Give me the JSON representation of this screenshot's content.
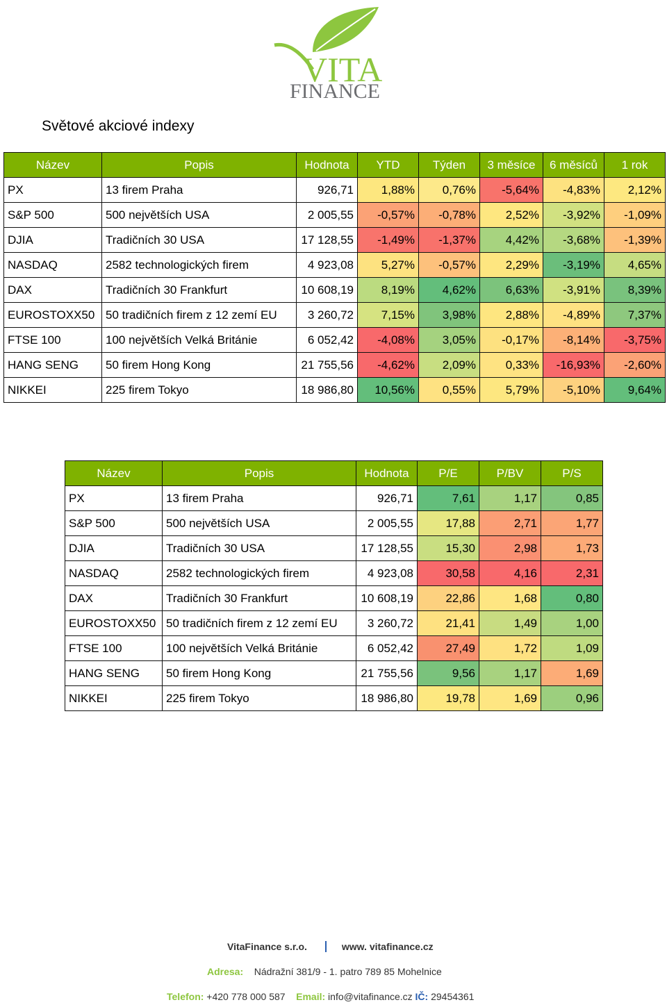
{
  "logo": {
    "line1": "VITA",
    "line2": "FINANCE",
    "colors": {
      "green": "#8dc63f",
      "grey": "#6d6e71"
    }
  },
  "title": "Světové akciové indexy",
  "table1": {
    "headers": [
      "Název",
      "Popis",
      "Hodnota",
      "YTD",
      "Týden",
      "3 měsíce",
      "6 měsíců",
      "1 rok"
    ],
    "rows": [
      {
        "name": "PX",
        "desc": "13 firem Praha",
        "value": "926,71",
        "cells": [
          {
            "v": "1,88%",
            "c": "#fde77f"
          },
          {
            "v": "0,76%",
            "c": "#fde98a"
          },
          {
            "v": "-5,64%",
            "c": "#f8736b"
          },
          {
            "v": "-4,83%",
            "c": "#fde280"
          },
          {
            "v": "2,12%",
            "c": "#fde880"
          }
        ]
      },
      {
        "name": "S&P 500",
        "desc": "500 největších USA",
        "value": "2 005,55",
        "cells": [
          {
            "v": "-0,57%",
            "c": "#fba276"
          },
          {
            "v": "-0,78%",
            "c": "#fcae77"
          },
          {
            "v": "2,52%",
            "c": "#fee780"
          },
          {
            "v": "-3,92%",
            "c": "#d1e181"
          },
          {
            "v": "-1,09%",
            "c": "#fecf7e"
          }
        ]
      },
      {
        "name": "DJIA",
        "desc": "Tradičních 30 USA",
        "value": "17 128,55",
        "cells": [
          {
            "v": "-1,49%",
            "c": "#f8746c"
          },
          {
            "v": "-1,37%",
            "c": "#f8726b"
          },
          {
            "v": "4,42%",
            "c": "#a7d37f"
          },
          {
            "v": "-3,68%",
            "c": "#b5d881"
          },
          {
            "v": "-1,39%",
            "c": "#fdc17c"
          }
        ]
      },
      {
        "name": "NASDAQ",
        "desc": "2582 technologických firem",
        "value": "4 923,08",
        "cells": [
          {
            "v": "5,27%",
            "c": "#fde280"
          },
          {
            "v": "-0,57%",
            "c": "#fdc17c"
          },
          {
            "v": "2,29%",
            "c": "#fee680"
          },
          {
            "v": "-3,19%",
            "c": "#6bbe7b"
          },
          {
            "v": "4,65%",
            "c": "#c6dd81"
          }
        ]
      },
      {
        "name": "DAX",
        "desc": "Tradičních 30 Frankfurt",
        "value": "10 608,19",
        "cells": [
          {
            "v": "8,19%",
            "c": "#bbdb80"
          },
          {
            "v": "4,62%",
            "c": "#63be7b"
          },
          {
            "v": "6,63%",
            "c": "#7cc37c"
          },
          {
            "v": "-3,91%",
            "c": "#d0e181"
          },
          {
            "v": "8,39%",
            "c": "#79c27d"
          }
        ]
      },
      {
        "name": "EUROSTOXX50",
        "desc": "50 tradičních firem z 12 zemí EU",
        "value": "3 260,72",
        "cells": [
          {
            "v": "7,15%",
            "c": "#d6e381"
          },
          {
            "v": "3,98%",
            "c": "#80c47c"
          },
          {
            "v": "2,88%",
            "c": "#fee680"
          },
          {
            "v": "-4,89%",
            "c": "#fee282"
          },
          {
            "v": "7,37%",
            "c": "#8ec87e"
          }
        ]
      },
      {
        "name": "FTSE 100",
        "desc": "100 největších Velká Británie",
        "value": "6 052,42",
        "cells": [
          {
            "v": "-4,08%",
            "c": "#f8696b"
          },
          {
            "v": "3,05%",
            "c": "#a5d27f"
          },
          {
            "v": "-0,17%",
            "c": "#fde180"
          },
          {
            "v": "-8,14%",
            "c": "#fcb077"
          },
          {
            "v": "-3,75%",
            "c": "#f8696b"
          }
        ]
      },
      {
        "name": "HANG SENG",
        "desc": "50 firem Hong Kong",
        "value": "21 755,56",
        "cells": [
          {
            "v": "-4,62%",
            "c": "#f8696b"
          },
          {
            "v": "2,09%",
            "c": "#c8de81"
          },
          {
            "v": "0,33%",
            "c": "#fee382"
          },
          {
            "v": "-16,93%",
            "c": "#f8696b"
          },
          {
            "v": "-2,60%",
            "c": "#fba276"
          }
        ]
      },
      {
        "name": "NIKKEI",
        "desc": "225 firem Tokyo",
        "value": "18 986,80",
        "cells": [
          {
            "v": "10,56%",
            "c": "#63be7b"
          },
          {
            "v": "0,55%",
            "c": "#fee282"
          },
          {
            "v": "5,79%",
            "c": "#fde780"
          },
          {
            "v": "-5,10%",
            "c": "#fdd17f"
          },
          {
            "v": "9,64%",
            "c": "#63be7b"
          }
        ]
      }
    ]
  },
  "table2": {
    "headers": [
      "Název",
      "Popis",
      "Hodnota",
      "P/E",
      "P/BV",
      "P/S"
    ],
    "rows": [
      {
        "name": "PX",
        "desc": "13 firem Praha",
        "value": "926,71",
        "cells": [
          {
            "v": "7,61",
            "c": "#63be7b"
          },
          {
            "v": "1,17",
            "c": "#a8d27f"
          },
          {
            "v": "0,85",
            "c": "#84c57d"
          }
        ]
      },
      {
        "name": "S&P 500",
        "desc": "500 největších USA",
        "value": "2 005,55",
        "cells": [
          {
            "v": "17,88",
            "c": "#e6e782"
          },
          {
            "v": "2,71",
            "c": "#fb9e75"
          },
          {
            "v": "1,77",
            "c": "#fba576"
          }
        ]
      },
      {
        "name": "DJIA",
        "desc": "Tradičních 30 USA",
        "value": "17 128,55",
        "cells": [
          {
            "v": "15,30",
            "c": "#c9de81"
          },
          {
            "v": "2,98",
            "c": "#fa9072"
          },
          {
            "v": "1,73",
            "c": "#fcaa77"
          }
        ]
      },
      {
        "name": "NASDAQ",
        "desc": "2582 technologických firem",
        "value": "4 923,08",
        "cells": [
          {
            "v": "30,58",
            "c": "#f8696b"
          },
          {
            "v": "4,16",
            "c": "#f8696b"
          },
          {
            "v": "2,31",
            "c": "#f8696b"
          }
        ]
      },
      {
        "name": "DAX",
        "desc": "Tradičních 30 Frankfurt",
        "value": "10 608,19",
        "cells": [
          {
            "v": "22,86",
            "c": "#fdd17f"
          },
          {
            "v": "1,68",
            "c": "#fee682"
          },
          {
            "v": "0,80",
            "c": "#63be7b"
          }
        ]
      },
      {
        "name": "EUROSTOXX50",
        "desc": "50 tradičních firem z 12 zemí EU",
        "value": "3 260,72",
        "cells": [
          {
            "v": "21,41",
            "c": "#fee181"
          },
          {
            "v": "1,49",
            "c": "#c8dc81"
          },
          {
            "v": "1,00",
            "c": "#a8d27f"
          }
        ]
      },
      {
        "name": "FTSE 100",
        "desc": "100 největších Velká Británie",
        "value": "6 052,42",
        "cells": [
          {
            "v": "27,49",
            "c": "#f9916f"
          },
          {
            "v": "1,72",
            "c": "#fee181"
          },
          {
            "v": "1,09",
            "c": "#bfdb80"
          }
        ]
      },
      {
        "name": "HANG SENG",
        "desc": "50 firem Hong Kong",
        "value": "21 755,56",
        "cells": [
          {
            "v": "9,56",
            "c": "#7ac27c"
          },
          {
            "v": "1,17",
            "c": "#a8d27f"
          },
          {
            "v": "1,69",
            "c": "#fcac77"
          }
        ]
      },
      {
        "name": "NIKKEI",
        "desc": "225 firem Tokyo",
        "value": "18 986,80",
        "cells": [
          {
            "v": "19,78",
            "c": "#fde880"
          },
          {
            "v": "1,69",
            "c": "#fee682"
          },
          {
            "v": "0,96",
            "c": "#9ccf7e"
          }
        ]
      }
    ]
  },
  "footer": {
    "company": "VitaFinance s.r.o.",
    "web": "www. vitafinance.cz",
    "address_label": "Adresa:",
    "address": "Nádražní 381/9 - 1. patro 789 85 Mohelnice",
    "phone_label": "Telefon:",
    "phone": "+420 778 000 587",
    "email_label": "Email:",
    "email": "info@vitafinance.cz",
    "ic_label": "IČ:",
    "ic": "29454361"
  }
}
